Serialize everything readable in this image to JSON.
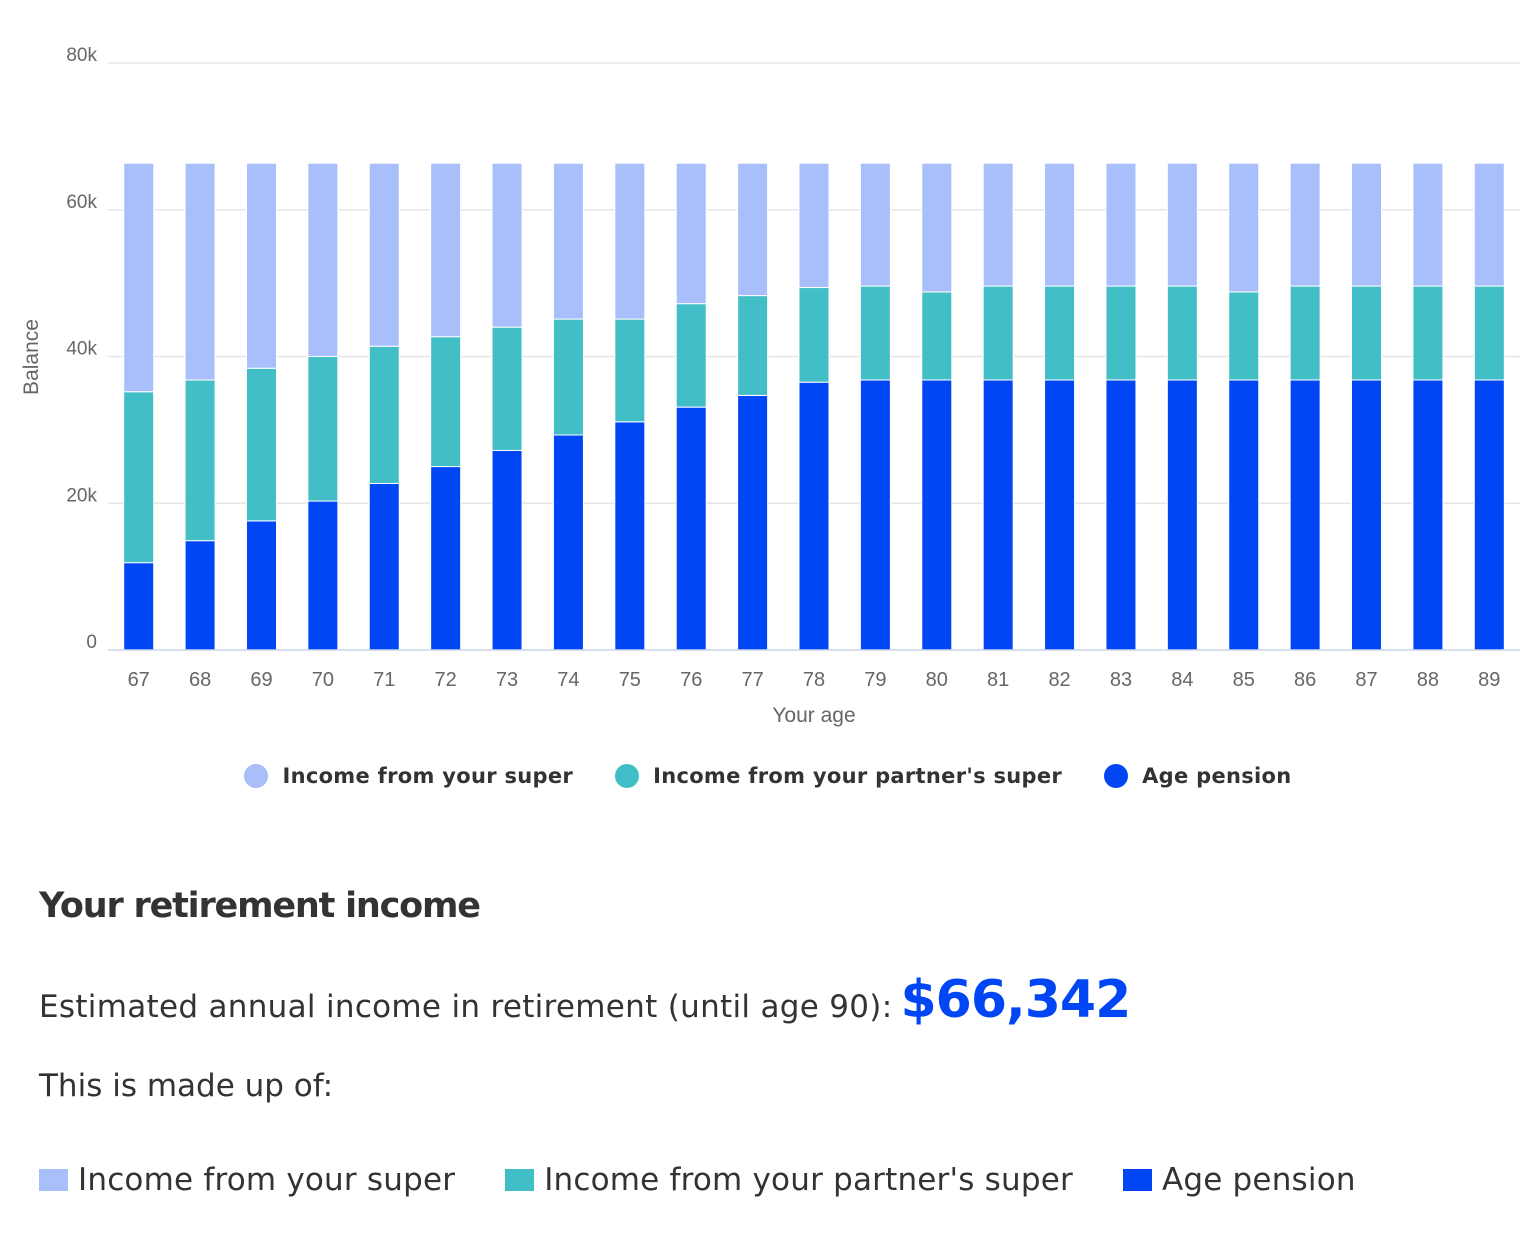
{
  "chart_data": {
    "type": "bar",
    "stacked": true,
    "title": "",
    "xlabel": "Your age",
    "ylabel": "Balance",
    "ylim": [
      0,
      80000
    ],
    "yticks": [
      0,
      20000,
      40000,
      60000,
      80000
    ],
    "ytick_labels": [
      "0",
      "20k",
      "40k",
      "60k",
      "80k"
    ],
    "grid": true,
    "legend_position": "bottom",
    "categories": [
      "67",
      "68",
      "69",
      "70",
      "71",
      "72",
      "73",
      "74",
      "75",
      "76",
      "77",
      "78",
      "79",
      "80",
      "81",
      "82",
      "83",
      "84",
      "85",
      "86",
      "87",
      "88",
      "89"
    ],
    "series": [
      {
        "name": "Age pension",
        "color": "#0046F5",
        "values": [
          11900,
          14900,
          17600,
          20300,
          22700,
          25000,
          27200,
          29300,
          31100,
          33100,
          34700,
          36500,
          36800,
          36800,
          36800,
          36800,
          36800,
          36800,
          36800,
          36800,
          36800,
          36800,
          36800
        ]
      },
      {
        "name": "Income from your partner's super",
        "color": "#42BEC6",
        "values": [
          23300,
          21900,
          20800,
          19700,
          18700,
          17700,
          16800,
          15800,
          14000,
          14100,
          13600,
          12900,
          12800,
          12000,
          12800,
          12800,
          12800,
          12800,
          12000,
          12800,
          12800,
          12800,
          12800
        ]
      },
      {
        "name": "Income from your super",
        "color": "#A8BFFB",
        "values": [
          31142,
          29542,
          27942,
          26342,
          24942,
          23642,
          22342,
          21242,
          21242,
          19142,
          18042,
          16942,
          16742,
          17542,
          16742,
          16742,
          16742,
          16742,
          17542,
          16742,
          16742,
          16742,
          16742
        ]
      }
    ],
    "totals": 66342
  },
  "chart": {
    "xlabel": "Your age",
    "ylabel": "Balance",
    "legend": [
      {
        "label": "Income from your super",
        "color": "#A8BFFB"
      },
      {
        "label": "Income from your partner's super",
        "color": "#42BEC6"
      },
      {
        "label": "Age pension",
        "color": "#0046F5"
      }
    ]
  },
  "summary": {
    "title": "Your retirement income",
    "estimate_label": "Estimated annual income in retirement (until age 90):",
    "estimate_value": "$66,342",
    "made_up_label": "This is made up of:",
    "breakdown": [
      {
        "label": "Income from your super",
        "color": "#A8BFFB"
      },
      {
        "label": "Income from your partner's super",
        "color": "#42BEC6"
      },
      {
        "label": "Age pension",
        "color": "#0046F5"
      }
    ]
  },
  "colors": {
    "accent": "#0046F5",
    "text": "#333333",
    "axis_text": "#666666",
    "grid": "#E6E6E6"
  }
}
